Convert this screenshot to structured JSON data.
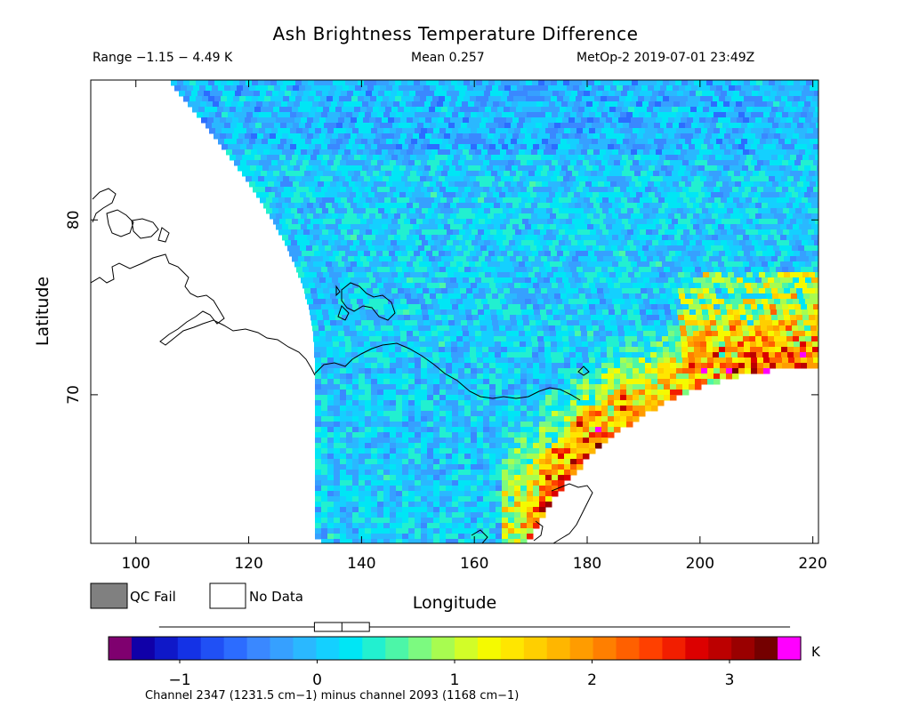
{
  "header": {
    "title": "Ash Brightness Temperature Difference",
    "range": "Range −1.15 − 4.49 K",
    "mean": "Mean 0.257",
    "source": "MetOp-2 2019-07-01 23:49Z"
  },
  "chart_data": {
    "type": "heatmap",
    "title": "Ash Brightness Temperature Difference",
    "xlabel": "Longitude",
    "ylabel": "Latitude",
    "xlim": [
      92,
      221
    ],
    "ylim": [
      61.5,
      88
    ],
    "x_ticks": [
      100,
      120,
      140,
      160,
      180,
      200,
      220
    ],
    "y_ticks": [
      70,
      80
    ],
    "x_tick_labels": [
      "100",
      "120",
      "140",
      "160",
      "180",
      "200",
      "220"
    ],
    "y_tick_labels": [
      "70",
      "80"
    ],
    "value_range": [
      -1.15,
      4.49
    ],
    "mean": 0.257,
    "units": "K",
    "grid": false,
    "colorbar": {
      "min": -1.35,
      "max": 3.35,
      "ticks": [
        -1,
        0,
        1,
        2,
        3
      ],
      "tick_labels": [
        "−1",
        "0",
        "1",
        "2",
        "3"
      ],
      "unit_label": "K",
      "caption": "Channel 2347 (1231.5 cm−1) minus channel 2093 (1168 cm−1)",
      "colors": [
        "#7f006f",
        "#1000a8",
        "#0f18c8",
        "#1432e6",
        "#2050f5",
        "#2c6cff",
        "#3a88ff",
        "#36a0ff",
        "#2ab8ff",
        "#14d0ff",
        "#00e6f5",
        "#22f0d0",
        "#4cf6a8",
        "#7cfa80",
        "#a8fc50",
        "#d2fd28",
        "#f5fa00",
        "#ffe600",
        "#ffcf00",
        "#ffb600",
        "#ff9c00",
        "#ff7f00",
        "#ff6000",
        "#ff4000",
        "#f21e00",
        "#dc0000",
        "#bc0000",
        "#9a0000",
        "#740000",
        "#ff00ff"
      ],
      "boxplot": {
        "whisker_min": -1.15,
        "q1": -0.02,
        "median": 0.18,
        "q3": 0.38,
        "whisker_max": 3.35
      }
    },
    "legend": [
      {
        "label": "QC Fail",
        "color": "#808080"
      },
      {
        "label": "No Data",
        "color": "#ffffff"
      }
    ],
    "features": {
      "ash_plume_max": 4.49,
      "description_in_image": []
    }
  }
}
